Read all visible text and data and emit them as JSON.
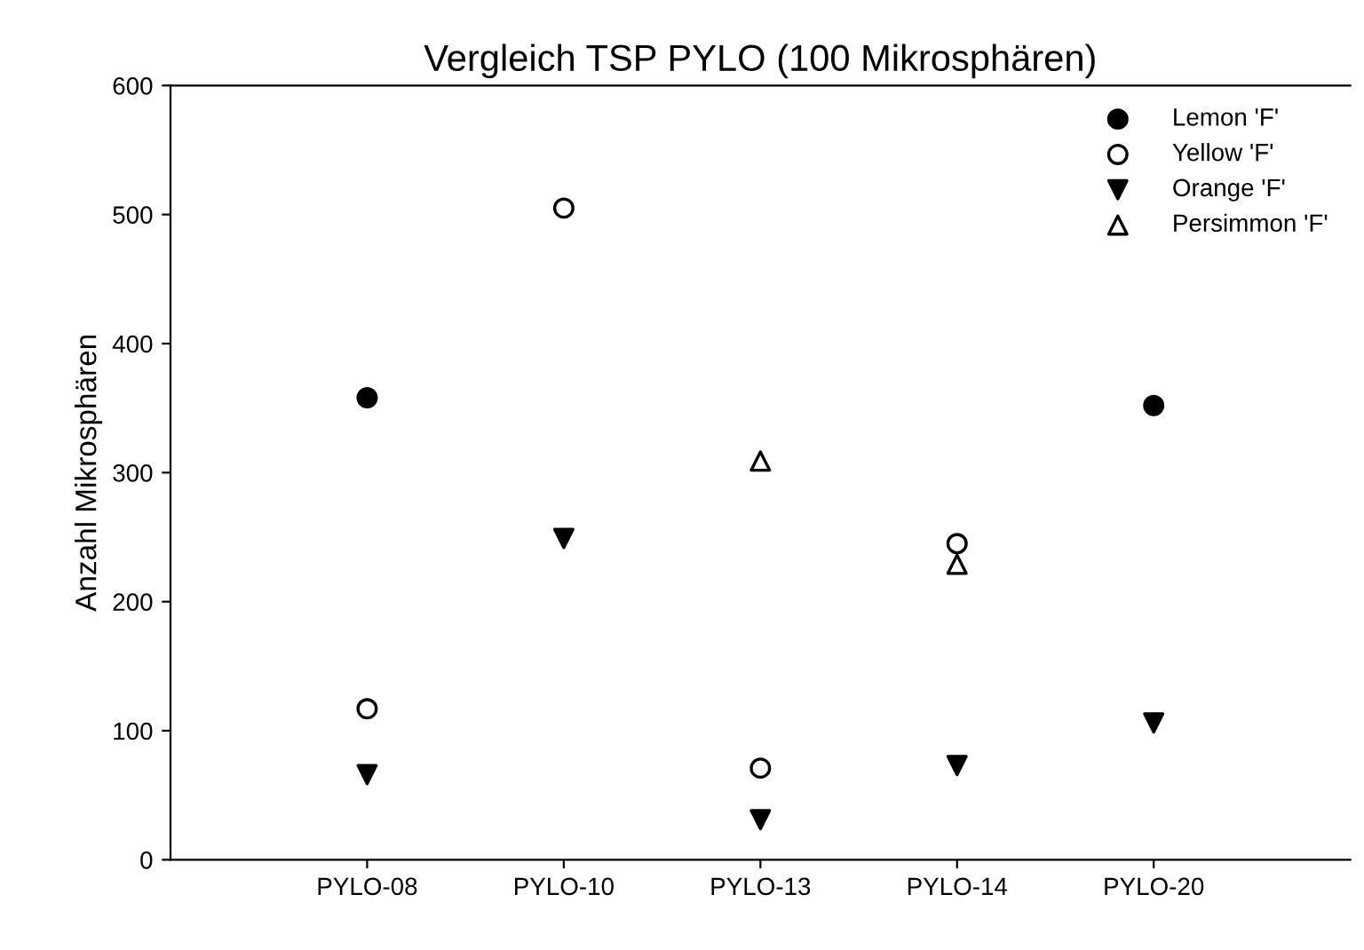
{
  "chart_data": {
    "type": "scatter",
    "title": "Vergleich TSP PYLO (100 Mikrosphären)",
    "ylabel": "Anzahl Mikrosphären",
    "categories": [
      "PYLO-08",
      "PYLO-10",
      "PYLO-13",
      "PYLO-14",
      "PYLO-20"
    ],
    "ylim": [
      0,
      600
    ],
    "yticks": [
      0,
      100,
      200,
      300,
      400,
      500,
      600
    ],
    "grid": false,
    "legend": "top right",
    "series": [
      {
        "name": "Lemon 'F'",
        "color": "#000000",
        "marker": "circle",
        "values": [
          358,
          null,
          null,
          null,
          352
        ]
      },
      {
        "name": "Yellow 'F'",
        "color": "#000000",
        "marker": "circle-open",
        "values": [
          117,
          505,
          71,
          245,
          null
        ]
      },
      {
        "name": "Orange 'F'",
        "color": "#000000",
        "marker": "triangle-down",
        "values": [
          66,
          249,
          31,
          73,
          106
        ]
      },
      {
        "name": "Persimmon 'F'",
        "color": "#000000",
        "marker": "triangle-open",
        "values": [
          null,
          null,
          309,
          229,
          null
        ]
      }
    ]
  }
}
